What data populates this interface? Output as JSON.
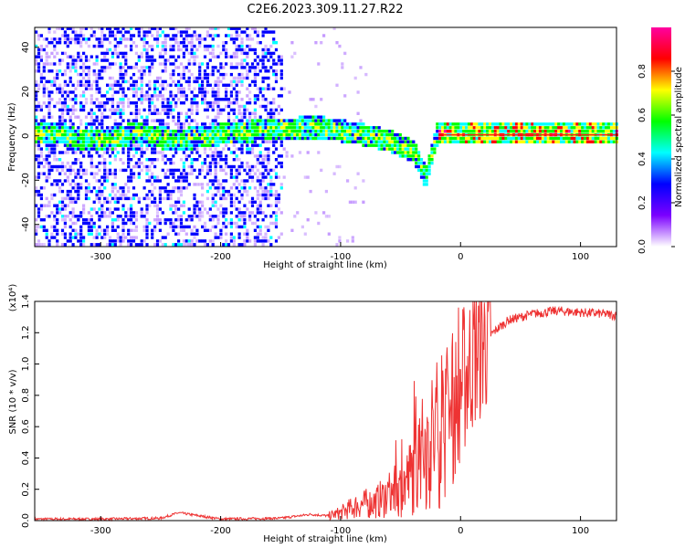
{
  "title": "C2E6.2023.309.11.27.R22",
  "chart_data": [
    {
      "type": "heatmap",
      "title": "C2E6.2023.309.11.27.R22",
      "xlabel": "Height of straight line (km)",
      "ylabel": "Frequency (Hz)",
      "xlim": [
        -355,
        130
      ],
      "ylim": [
        -50,
        49
      ],
      "x_ticks": [
        -300,
        -200,
        -100,
        0,
        100
      ],
      "y_ticks": [
        -40,
        -20,
        0,
        20,
        40
      ],
      "colorbar": {
        "label": "Normalized spectral amplitude",
        "range": [
          0.0,
          1.0
        ],
        "ticks": [
          "0.0",
          "0.2",
          "0.4",
          "0.6",
          "0.8"
        ],
        "colors": [
          "#ffffff",
          "#7b00ff",
          "#0000ff",
          "#00ffff",
          "#00ff00",
          "#ffff00",
          "#ff0000",
          "#ff00a0"
        ]
      },
      "ridge": [
        {
          "x": -330,
          "f": -2.0
        },
        {
          "x": -300,
          "f": -3.0
        },
        {
          "x": -270,
          "f": 0.5
        },
        {
          "x": -240,
          "f": -3.0
        },
        {
          "x": -200,
          "f": 0.0
        },
        {
          "x": -160,
          "f": 2.0
        },
        {
          "x": -120,
          "f": 3.0
        },
        {
          "x": -90,
          "f": 0.5
        },
        {
          "x": -60,
          "f": -3.0
        },
        {
          "x": -40,
          "f": -8.0
        },
        {
          "x": -30,
          "f": -20.0
        },
        {
          "x": -20,
          "f": 1.0
        },
        {
          "x": 0,
          "f": 0.5
        },
        {
          "x": 130,
          "f": 0.5
        }
      ]
    },
    {
      "type": "line",
      "xlabel": "Height of straight line (km)",
      "ylabel": "SNR (10 * v/v)",
      "y_multiplier": "(x10⁴)",
      "xlim": [
        -355,
        130
      ],
      "ylim": [
        0.0,
        1.4
      ],
      "x_ticks": [
        -300,
        -200,
        -100,
        0,
        100
      ],
      "y_ticks": [
        "0.0",
        "0.2",
        "0.4",
        "0.6",
        "0.8",
        "1.0",
        "1.2",
        "1.4"
      ],
      "color": "#ee3333",
      "series": [
        {
          "x": [
            -355,
            -300,
            -250,
            -235,
            -200,
            -150,
            -125,
            -110,
            -100,
            -85,
            -70,
            -60,
            -50,
            -40,
            -30,
            -20,
            -10,
            -5,
            0,
            5,
            10,
            20,
            30,
            40,
            60,
            80,
            100,
            120,
            130
          ],
          "y": [
            0.01,
            0.01,
            0.015,
            0.05,
            0.01,
            0.015,
            0.04,
            0.03,
            0.05,
            0.1,
            0.12,
            0.17,
            0.2,
            0.3,
            0.45,
            0.55,
            0.65,
            0.75,
            0.85,
            0.95,
            1.05,
            1.15,
            1.22,
            1.28,
            1.32,
            1.34,
            1.33,
            1.32,
            1.31
          ]
        }
      ]
    }
  ]
}
